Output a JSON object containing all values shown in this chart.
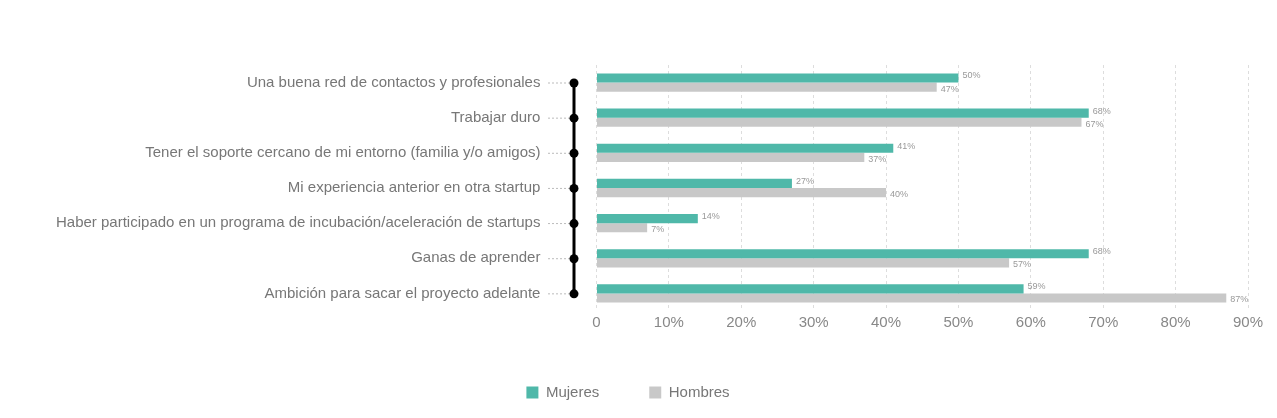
{
  "chart_data": {
    "type": "bar",
    "orientation": "horizontal",
    "categories": [
      "Una buena red de contactos y profesionales",
      "Trabajar duro",
      "Tener el soporte cercano de mi entorno (familia y/o amigos)",
      "Mi experiencia anterior en otra startup",
      "Haber participado en un programa de incubación/aceleración de startups",
      "Ganas de aprender",
      "Ambición para sacar el proyecto adelante"
    ],
    "series": [
      {
        "name": "Mujeres",
        "color": "#4fb8a9",
        "values": [
          50,
          68,
          41,
          27,
          14,
          68,
          59
        ],
        "value_labels": [
          "50%",
          "68%",
          "41%",
          "27%",
          "14%",
          "68%",
          "59%"
        ]
      },
      {
        "name": "Hombres",
        "color": "#c8c8c8",
        "values": [
          47,
          67,
          37,
          40,
          7,
          57,
          87
        ],
        "value_labels": [
          "47%",
          "67%",
          "37%",
          "40%",
          "7%",
          "57%",
          "87%"
        ]
      }
    ],
    "xlim": [
      0,
      90
    ],
    "xticks": [
      0,
      {
        "value": 10,
        "label": "10%"
      },
      {
        "value": 20,
        "label": "20%"
      },
      {
        "value": 30,
        "label": "30%"
      },
      {
        "value": 40,
        "label": "40%"
      },
      {
        "value": 50,
        "label": "50%"
      },
      {
        "value": 60,
        "label": "60%"
      },
      {
        "value": 70,
        "label": "70%"
      },
      {
        "value": 80,
        "label": "80%"
      },
      {
        "value": 90,
        "label": "90%"
      }
    ],
    "grid": "x",
    "legend": "bottom"
  }
}
